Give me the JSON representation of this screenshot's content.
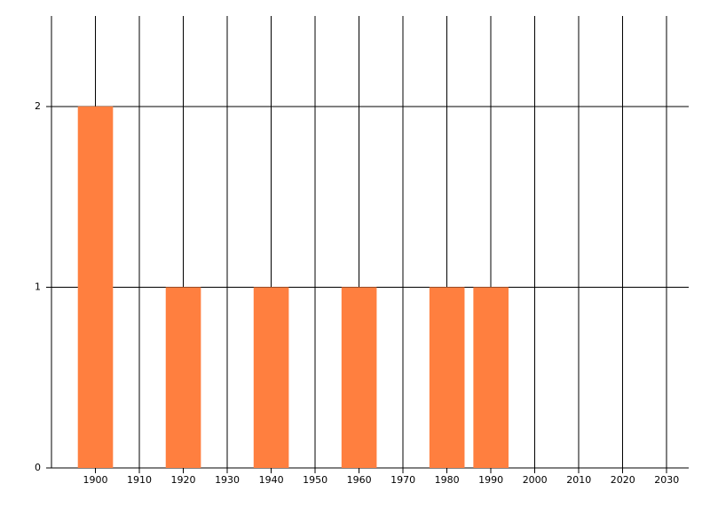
{
  "chart_data": {
    "type": "bar",
    "x": [
      1900,
      1920,
      1940,
      1960,
      1980,
      1990
    ],
    "values": [
      2,
      1,
      1,
      1,
      1,
      1
    ],
    "color": "#ff7f3f",
    "xlim": [
      1890,
      2035
    ],
    "xticks": [
      1900,
      1910,
      1920,
      1930,
      1940,
      1950,
      1960,
      1970,
      1980,
      1990,
      2000,
      2010,
      2020,
      2030
    ],
    "ylim": [
      0,
      2.5
    ],
    "yticks": [
      0,
      1,
      2
    ],
    "grid": true
  }
}
